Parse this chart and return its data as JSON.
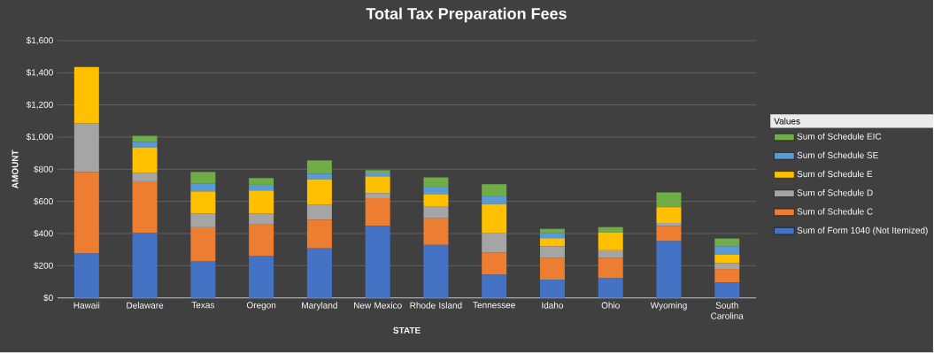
{
  "chart_data": {
    "type": "bar",
    "title": "Total Tax Preparation Fees",
    "xlabel": "STATE",
    "ylabel": "AMOUNT",
    "legend_title": "Values",
    "categories": [
      "Hawaii",
      "Delaware",
      "Texas",
      "Oregon",
      "Maryland",
      "New Mexico",
      "Rhode Island",
      "Tennessee",
      "Idaho",
      "Ohio",
      "Wyoming",
      "South Carolina"
    ],
    "stacked": true,
    "series": [
      {
        "name": "Sum of Form 1040 (Not Itemized)",
        "color": "#4472c4",
        "values": [
          276,
          404,
          229,
          262,
          307,
          448,
          329,
          144,
          113,
          122,
          353,
          95
        ]
      },
      {
        "name": "Sum of Schedule C",
        "color": "#ed7d31",
        "values": [
          507,
          321,
          210,
          194,
          180,
          172,
          166,
          137,
          137,
          126,
          94,
          84
        ]
      },
      {
        "name": "Sum of Schedule D",
        "color": "#a5a5a5",
        "values": [
          302,
          51,
          84,
          67,
          91,
          31,
          75,
          124,
          70,
          48,
          19,
          37
        ]
      },
      {
        "name": "Sum of Schedule E",
        "color": "#ffc000",
        "values": [
          351,
          159,
          139,
          145,
          159,
          105,
          75,
          178,
          51,
          111,
          98,
          52
        ]
      },
      {
        "name": "Sum of Schedule SE",
        "color": "#5b9bd5",
        "values": [
          0,
          35,
          50,
          35,
          35,
          18,
          47,
          49,
          31,
          null,
          6,
          53
        ]
      },
      {
        "name": "Sum of Schedule EIC",
        "color": "#70ad47",
        "values": [
          0,
          38,
          71,
          42,
          83,
          20,
          57,
          75,
          27,
          33,
          86,
          48
        ]
      }
    ],
    "ylim": [
      0,
      1600
    ],
    "yticks": [
      {
        "value": 0,
        "label": "$0"
      },
      {
        "value": 200,
        "label": "$200"
      },
      {
        "value": 400,
        "label": "$400"
      },
      {
        "value": 600,
        "label": "$600"
      },
      {
        "value": 800,
        "label": "$800"
      },
      {
        "value": 1000,
        "label": "$1,000"
      },
      {
        "value": 1200,
        "label": "$1,200"
      },
      {
        "value": 1400,
        "label": "$1,400"
      },
      {
        "value": 1600,
        "label": "$1,600"
      }
    ],
    "grid": "y",
    "legend": "right"
  }
}
